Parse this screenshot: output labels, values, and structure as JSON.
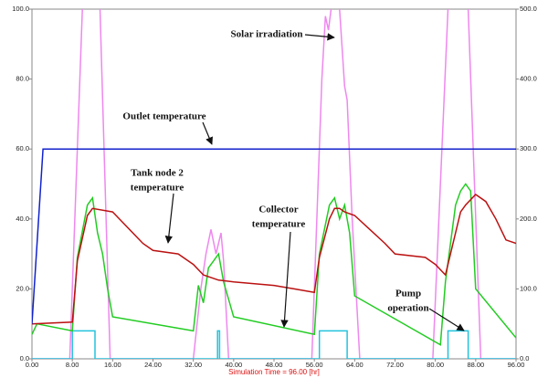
{
  "chart_data": {
    "type": "line",
    "xlabel": "Simulation Time = 96.00 [hr]",
    "xlim": [
      0,
      96
    ],
    "xticks": [
      {
        "value": 0,
        "label": "0.00"
      },
      {
        "value": 8,
        "label": "8.00"
      },
      {
        "value": 16,
        "label": "16.00"
      },
      {
        "value": 24,
        "label": "24.00"
      },
      {
        "value": 32,
        "label": "32.00"
      },
      {
        "value": 40,
        "label": "40.00"
      },
      {
        "value": 48,
        "label": "48.00"
      },
      {
        "value": 56,
        "label": "56.00"
      },
      {
        "value": 64,
        "label": "64.00"
      },
      {
        "value": 72,
        "label": "72.00"
      },
      {
        "value": 80,
        "label": "80.00"
      },
      {
        "value": 88,
        "label": "88.00"
      },
      {
        "value": 96,
        "label": "96.00"
      }
    ],
    "ylim": [
      0,
      100
    ],
    "yticks": [
      {
        "value": 0,
        "label": "0.0"
      },
      {
        "value": 20,
        "label": "20.0"
      },
      {
        "value": 40,
        "label": "40.0"
      },
      {
        "value": 60,
        "label": "60.0"
      },
      {
        "value": 80,
        "label": "80.0"
      },
      {
        "value": 100,
        "label": "100.0"
      }
    ],
    "y2lim": [
      0,
      500
    ],
    "y2ticks": [
      {
        "value": 0,
        "label": "0.0"
      },
      {
        "value": 100,
        "label": "100.0"
      },
      {
        "value": 200,
        "label": "200.0"
      },
      {
        "value": 300,
        "label": "300.0"
      },
      {
        "value": 400,
        "label": "400.0"
      },
      {
        "value": 500,
        "label": "500.0"
      }
    ],
    "annotations": [
      {
        "text": [
          "Solar irradiation"
        ]
      },
      {
        "text": [
          "Outlet temperature"
        ]
      },
      {
        "text": [
          "Tank node 2",
          "temperature"
        ]
      },
      {
        "text": [
          "Collector",
          "temperature"
        ]
      },
      {
        "text": [
          "Pump",
          "operation"
        ]
      }
    ],
    "series": [
      {
        "color": "#ee88ee",
        "axis": "y2",
        "x": [
          0,
          7.5,
          10,
          11,
          12.5,
          13.5,
          15.5,
          32,
          33.5,
          34.5,
          35.5,
          36.5,
          37.5,
          38,
          39,
          55.5,
          57.5,
          58.2,
          58.8,
          59.5,
          61,
          62,
          62.5,
          63.5,
          65,
          79.5,
          82.5,
          83,
          86,
          86.5,
          89,
          96
        ],
        "values": [
          0,
          0,
          500,
          560,
          560,
          500,
          0,
          0,
          100,
          150,
          185,
          150,
          180,
          140,
          0,
          0,
          400,
          490,
          470,
          510,
          500,
          390,
          370,
          200,
          0,
          0,
          500,
          560,
          560,
          500,
          0,
          0
        ]
      },
      {
        "color": "#22c3dd",
        "x": [
          0,
          8,
          8,
          12.5,
          12.5,
          36.8,
          36.8,
          37.2,
          37.2,
          57,
          57,
          62.5,
          62.5,
          82.5,
          82.5,
          86.5,
          86.5,
          96
        ],
        "values": [
          0,
          0,
          8,
          8,
          0,
          0,
          8,
          8,
          0,
          0,
          8,
          8,
          0,
          0,
          8,
          8,
          0,
          0
        ]
      },
      {
        "color": "#22cc22",
        "x": [
          0,
          1,
          8,
          9,
          11,
          12,
          13,
          14,
          15,
          16,
          32,
          33,
          34,
          35,
          36,
          37,
          38,
          40,
          56,
          57,
          59,
          60,
          61,
          62,
          63,
          64,
          81,
          82,
          84,
          85,
          86,
          87,
          88,
          96
        ],
        "values": [
          7,
          10,
          8,
          29,
          44,
          46,
          36,
          30,
          20,
          12,
          8,
          21,
          16,
          26,
          28,
          30,
          22,
          12,
          7,
          30,
          44,
          46,
          40,
          44,
          36,
          18,
          4,
          22,
          44,
          48,
          50,
          48,
          20,
          6
        ]
      },
      {
        "color": "#bb1111",
        "x": [
          0,
          8,
          9,
          11,
          12,
          16,
          18,
          22,
          24,
          29,
          31,
          32,
          34,
          37,
          40,
          48,
          52,
          56,
          57,
          59,
          60,
          61,
          62,
          64,
          67,
          70,
          72,
          78,
          80,
          82,
          85,
          86,
          88,
          90,
          92,
          94,
          96
        ],
        "values": [
          10,
          10.5,
          28,
          41,
          43,
          42,
          39,
          33,
          31,
          30,
          28,
          27,
          24,
          22.5,
          22,
          21,
          20,
          19,
          29,
          40,
          43,
          43,
          42,
          41,
          37,
          33,
          30,
          29,
          27,
          24,
          42,
          44,
          47,
          45,
          40,
          34,
          33
        ]
      },
      {
        "color": "#1122cc",
        "x": [
          0,
          2.2,
          96
        ],
        "values": [
          10,
          60,
          60
        ]
      }
    ]
  }
}
